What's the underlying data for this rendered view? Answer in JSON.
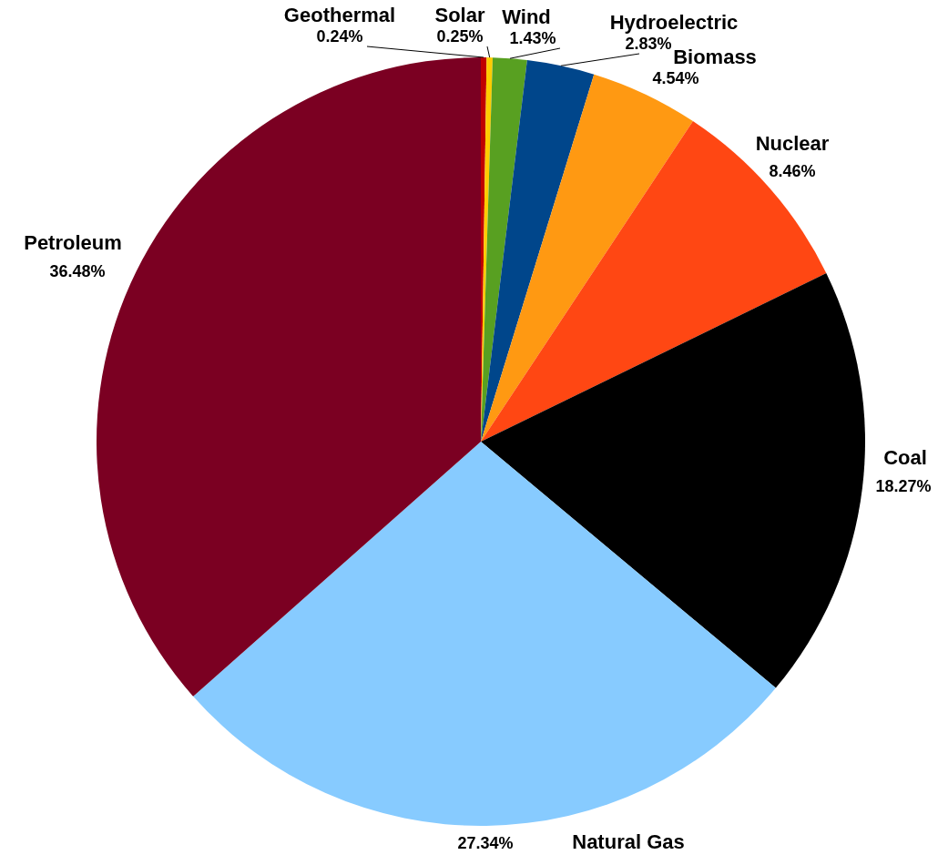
{
  "chart_data": {
    "type": "pie",
    "categories": [
      "Geothermal",
      "Solar",
      "Wind",
      "Hydroelectric",
      "Biomass",
      "Nuclear",
      "Coal",
      "Natural Gas",
      "Petroleum"
    ],
    "values": [
      0.24,
      0.25,
      1.43,
      2.83,
      4.54,
      8.46,
      18.27,
      27.34,
      36.48
    ],
    "value_labels": [
      "0.24%",
      "0.25%",
      "1.43%",
      "2.83%",
      "4.54%",
      "8.46%",
      "18.27%",
      "27.34%",
      "36.48%"
    ],
    "colors": [
      "#c00000",
      "#ffcc00",
      "#58a021",
      "#00468b",
      "#ff9912",
      "#ff4713",
      "#000000",
      "#87cbff",
      "#7b0022"
    ]
  }
}
